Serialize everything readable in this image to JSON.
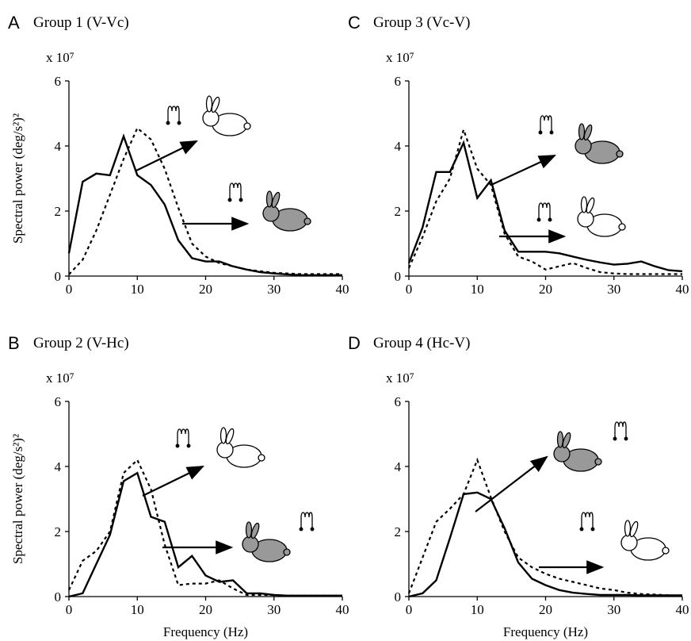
{
  "chart_data": [
    {
      "type": "line",
      "panel": "A",
      "title": "Group 1 (V-Vc)",
      "multiplier": "x 10⁷",
      "ylabel": "Spectral power (deg/s²)²",
      "x": [
        0,
        2,
        4,
        6,
        8,
        10,
        12,
        14,
        16,
        18,
        20,
        22,
        24,
        26,
        28,
        30,
        32,
        34,
        36,
        38,
        40
      ],
      "series": [
        {
          "color": "#000000",
          "dashed": false,
          "values": [
            0.7,
            2.9,
            3.15,
            3.1,
            4.3,
            3.1,
            2.8,
            2.2,
            1.1,
            0.55,
            0.45,
            0.45,
            0.3,
            0.2,
            0.12,
            0.08,
            0.05,
            0.03,
            0.03,
            0.03,
            0.03
          ]
        },
        {
          "color": "#000000",
          "dashed": true,
          "values": [
            0.05,
            0.5,
            1.4,
            2.5,
            3.6,
            4.55,
            4.2,
            3.3,
            2.1,
            1.0,
            0.6,
            0.4,
            0.3,
            0.2,
            0.15,
            0.1,
            0.08,
            0.06,
            0.06,
            0.06,
            0.06
          ]
        }
      ],
      "xlim": [
        0,
        40
      ],
      "ylim": [
        0,
        6
      ],
      "xticks": [
        0,
        10,
        20,
        30,
        40
      ],
      "yticks": [
        0,
        2,
        4,
        6
      ]
    },
    {
      "type": "line",
      "panel": "C",
      "title": "Group 3 (Vc-V)",
      "multiplier": "x 10⁷",
      "x": [
        0,
        2,
        4,
        6,
        8,
        10,
        12,
        14,
        16,
        18,
        20,
        22,
        24,
        26,
        28,
        30,
        32,
        34,
        36,
        38,
        40
      ],
      "series": [
        {
          "color": "#000000",
          "dashed": false,
          "values": [
            0.4,
            1.5,
            3.2,
            3.2,
            4.1,
            2.4,
            2.95,
            1.4,
            0.75,
            0.75,
            0.75,
            0.7,
            0.6,
            0.5,
            0.42,
            0.35,
            0.38,
            0.45,
            0.3,
            0.18,
            0.15
          ]
        },
        {
          "color": "#000000",
          "dashed": true,
          "values": [
            0.25,
            1.2,
            2.3,
            3.0,
            4.5,
            3.3,
            2.8,
            1.3,
            0.6,
            0.45,
            0.2,
            0.3,
            0.4,
            0.25,
            0.12,
            0.08,
            0.06,
            0.06,
            0.06,
            0.06,
            0.06
          ]
        }
      ],
      "xlim": [
        0,
        40
      ],
      "ylim": [
        0,
        6
      ],
      "xticks": [
        0,
        10,
        20,
        30,
        40
      ],
      "yticks": [
        0,
        2,
        4,
        6
      ]
    },
    {
      "type": "line",
      "panel": "B",
      "title": "Group 2 (V-Hc)",
      "multiplier": "x 10⁷",
      "ylabel": "Spectral power (deg/s²)²",
      "xlabel": "Frequency (Hz)",
      "x": [
        0,
        2,
        4,
        6,
        8,
        10,
        12,
        14,
        16,
        18,
        20,
        22,
        24,
        26,
        28,
        30,
        32,
        34,
        36,
        38,
        40
      ],
      "series": [
        {
          "color": "#000000",
          "dashed": false,
          "values": [
            0,
            0.1,
            1.0,
            1.9,
            3.55,
            3.8,
            2.45,
            2.3,
            0.9,
            1.25,
            0.65,
            0.45,
            0.5,
            0.1,
            0.1,
            0.05,
            0.03,
            0.03,
            0.03,
            0.03,
            0.03
          ]
        },
        {
          "color": "#000000",
          "dashed": true,
          "values": [
            0.2,
            1.1,
            1.4,
            2.0,
            3.8,
            4.2,
            3.3,
            1.6,
            0.35,
            0.4,
            0.4,
            0.5,
            0.25,
            0.05,
            0.05,
            0.05,
            0.03,
            0.03,
            0.03,
            0.03,
            0.03
          ]
        }
      ],
      "xlim": [
        0,
        40
      ],
      "ylim": [
        0,
        6
      ],
      "xticks": [
        0,
        10,
        20,
        30,
        40
      ],
      "yticks": [
        0,
        2,
        4,
        6
      ]
    },
    {
      "type": "line",
      "panel": "D",
      "title": "Group 4 (Hc-V)",
      "multiplier": "x 10⁷",
      "xlabel": "Frequency (Hz)",
      "x": [
        0,
        2,
        4,
        6,
        8,
        10,
        12,
        14,
        16,
        18,
        20,
        22,
        24,
        26,
        28,
        30,
        32,
        34,
        36,
        38,
        40
      ],
      "series": [
        {
          "color": "#000000",
          "dashed": false,
          "values": [
            0,
            0.1,
            0.5,
            1.8,
            3.15,
            3.2,
            3.0,
            2.1,
            1.05,
            0.55,
            0.35,
            0.2,
            0.12,
            0.08,
            0.05,
            0.05,
            0.05,
            0.04,
            0.04,
            0.04,
            0.04
          ]
        },
        {
          "color": "#000000",
          "dashed": true,
          "values": [
            0.1,
            1.2,
            2.3,
            2.7,
            3.15,
            4.2,
            3.05,
            2.0,
            1.2,
            0.9,
            0.7,
            0.55,
            0.45,
            0.35,
            0.25,
            0.2,
            0.12,
            0.08,
            0.06,
            0.04,
            0.03
          ]
        }
      ],
      "xlim": [
        0,
        40
      ],
      "ylim": [
        0,
        6
      ],
      "xticks": [
        0,
        10,
        20,
        30,
        40
      ],
      "yticks": [
        0,
        2,
        4,
        6
      ]
    }
  ]
}
